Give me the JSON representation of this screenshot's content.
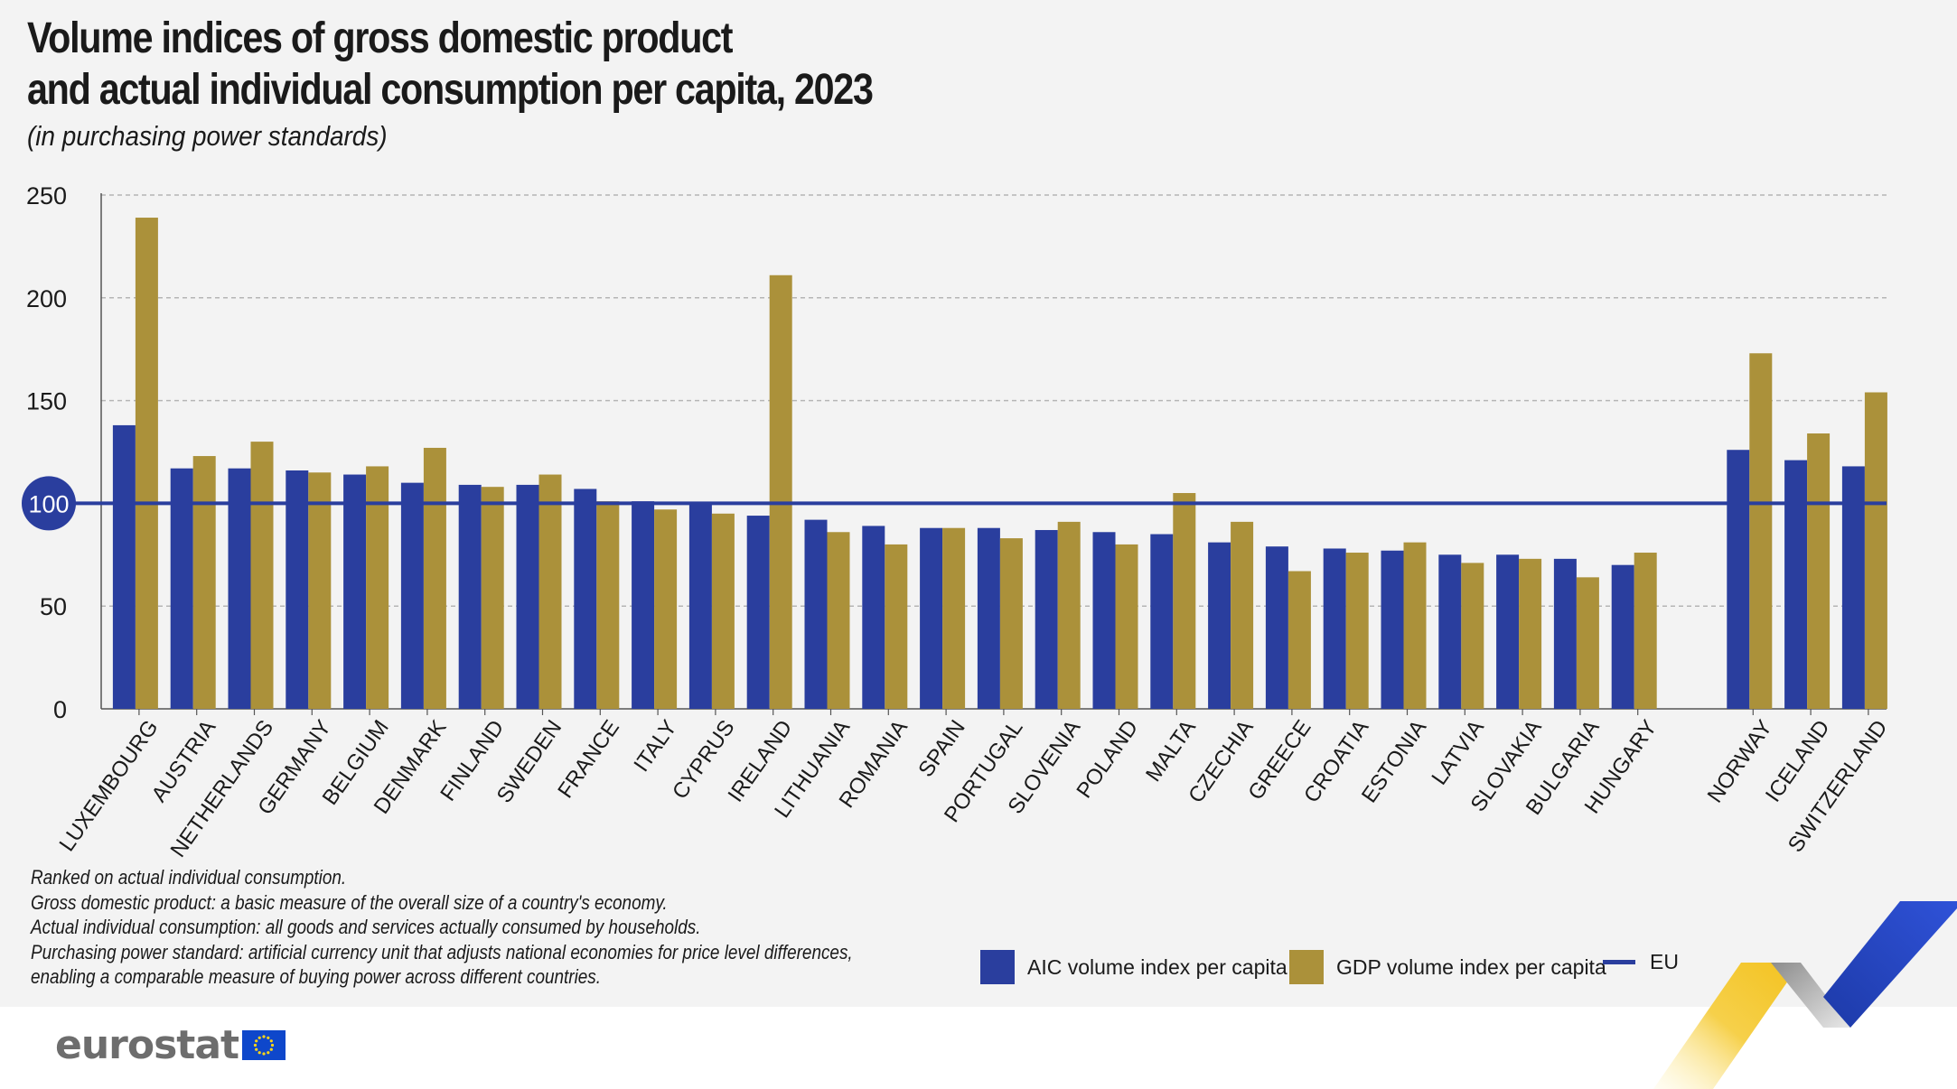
{
  "title_lines": [
    "Volume indices of gross domestic product",
    "and actual individual consumption per capita, 2023"
  ],
  "subtitle": "(in purchasing power standards)",
  "notes": [
    "Ranked on actual individual consumption.",
    "Gross domestic product: a basic measure of the overall size of a country's economy.",
    "Actual individual consumption: all goods and services actually consumed by households.",
    "Purchasing power standard: artificial currency unit that adjusts national economies for price level differences,",
    "enabling a comparable measure of buying power across different countries."
  ],
  "legend": {
    "aic": "AIC volume index per capita",
    "gdp": "GDP volume index per capita",
    "eu": "EU"
  },
  "colors": {
    "aic": "#2a3e9e",
    "gdp": "#ab913a",
    "eu": "#2a3e9e",
    "grid": "#b5b5b5"
  },
  "logo_text": "eurostat",
  "chart_data": {
    "type": "bar",
    "title": "Volume indices of gross domestic product and actual individual consumption per capita, 2023",
    "subtitle": "(in purchasing power standards)",
    "xlabel": "",
    "ylabel": "",
    "ylim": [
      0,
      250
    ],
    "yticks": [
      0,
      50,
      100,
      150,
      200,
      250
    ],
    "grid": true,
    "legend_position": "bottom-right",
    "reference_line": {
      "name": "EU",
      "value": 100
    },
    "groups": [
      [
        "LUXEMBOURG",
        "AUSTRIA",
        "NETHERLANDS",
        "GERMANY",
        "BELGIUM",
        "DENMARK",
        "FINLAND",
        "SWEDEN",
        "FRANCE",
        "ITALY",
        "CYPRUS",
        "IRELAND",
        "LITHUANIA",
        "ROMANIA",
        "SPAIN",
        "PORTUGAL",
        "SLOVENIA",
        "POLAND",
        "MALTA",
        "CZECHIA",
        "GREECE",
        "CROATIA",
        "ESTONIA",
        "LATVIA",
        "SLOVAKIA",
        "BULGARIA",
        "HUNGARY"
      ],
      [
        "NORWAY",
        "ICELAND",
        "SWITZERLAND"
      ]
    ],
    "categories": [
      "LUXEMBOURG",
      "AUSTRIA",
      "NETHERLANDS",
      "GERMANY",
      "BELGIUM",
      "DENMARK",
      "FINLAND",
      "SWEDEN",
      "FRANCE",
      "ITALY",
      "CYPRUS",
      "IRELAND",
      "LITHUANIA",
      "ROMANIA",
      "SPAIN",
      "PORTUGAL",
      "SLOVENIA",
      "POLAND",
      "MALTA",
      "CZECHIA",
      "GREECE",
      "CROATIA",
      "ESTONIA",
      "LATVIA",
      "SLOVAKIA",
      "BULGARIA",
      "HUNGARY",
      "NORWAY",
      "ICELAND",
      "SWITZERLAND"
    ],
    "series": [
      {
        "name": "AIC volume index per capita",
        "values": [
          138,
          117,
          117,
          116,
          114,
          110,
          109,
          109,
          107,
          101,
          100,
          94,
          92,
          89,
          88,
          88,
          87,
          86,
          85,
          81,
          79,
          78,
          77,
          75,
          75,
          73,
          70,
          126,
          121,
          118
        ]
      },
      {
        "name": "GDP volume index per capita",
        "values": [
          239,
          123,
          130,
          115,
          118,
          127,
          108,
          114,
          101,
          97,
          95,
          211,
          86,
          80,
          88,
          83,
          91,
          80,
          105,
          91,
          67,
          76,
          81,
          71,
          73,
          64,
          76,
          173,
          134,
          154
        ]
      }
    ]
  }
}
